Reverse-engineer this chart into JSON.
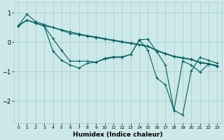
{
  "xlabel": "Humidex (Indice chaleur)",
  "background_color": "#cce8e8",
  "grid_color": "#aacccc",
  "line_color": "#006060",
  "xlim": [
    -0.5,
    23.5
  ],
  "ylim": [
    -2.75,
    1.35
  ],
  "yticks": [
    -2,
    -1,
    0,
    1
  ],
  "xticks": [
    0,
    1,
    2,
    3,
    4,
    5,
    6,
    7,
    8,
    9,
    10,
    11,
    12,
    13,
    14,
    15,
    16,
    17,
    18,
    19,
    20,
    21,
    22,
    23
  ],
  "lines": [
    [
      0.55,
      0.95,
      0.7,
      0.6,
      0.5,
      0.4,
      0.3,
      0.25,
      0.2,
      0.15,
      0.1,
      0.05,
      0.0,
      -0.05,
      -0.1,
      -0.15,
      -0.3,
      -0.4,
      -0.5,
      -0.55,
      -0.6,
      -0.7,
      -0.75,
      -0.82
    ],
    [
      0.55,
      0.75,
      0.65,
      0.55,
      0.5,
      0.42,
      0.35,
      0.28,
      0.22,
      0.18,
      0.12,
      0.07,
      0.02,
      -0.03,
      -0.08,
      -0.13,
      -0.28,
      -0.38,
      -0.48,
      -0.53,
      -0.58,
      -0.68,
      -0.73,
      -0.8
    ],
    [
      0.55,
      0.75,
      0.65,
      0.55,
      0.12,
      -0.28,
      -0.65,
      -0.65,
      -0.65,
      -0.68,
      -0.55,
      -0.5,
      -0.5,
      -0.42,
      0.07,
      -0.28,
      -1.22,
      -1.45,
      -2.32,
      -0.65,
      -0.78,
      -1.02,
      -0.75,
      -0.82
    ],
    [
      0.55,
      0.75,
      0.65,
      0.55,
      -0.3,
      -0.62,
      -0.78,
      -0.88,
      -0.72,
      -0.68,
      -0.58,
      -0.52,
      -0.52,
      -0.42,
      0.08,
      0.1,
      -0.32,
      -0.78,
      -2.32,
      -2.48,
      -0.98,
      -0.52,
      -0.62,
      -0.72
    ]
  ]
}
